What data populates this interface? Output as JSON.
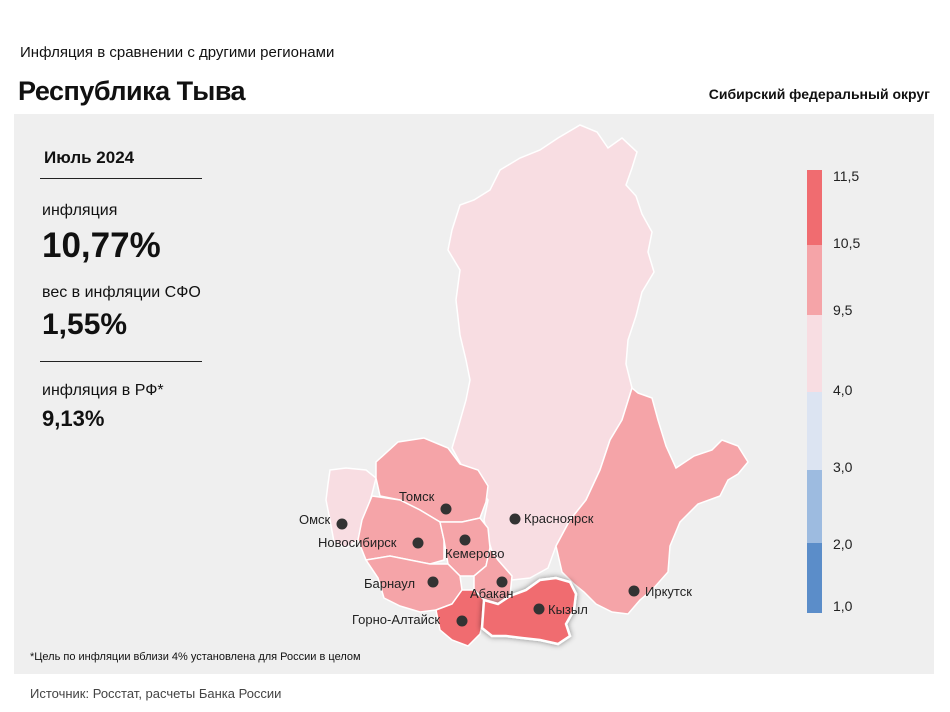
{
  "header": {
    "supertitle": "Инфляция в сравнении с другими регионами",
    "title": "Республика Тыва",
    "district": "Сибирский федеральный округ"
  },
  "info": {
    "month": "Июль 2024",
    "inflation_label": "инфляция",
    "inflation_value": "10,77%",
    "weight_label": "вес в инфляции СФО",
    "weight_value": "1,55%",
    "rf_label": "инфляция в РФ*",
    "rf_value": "9,13%"
  },
  "legend": {
    "ticks": [
      "1,0",
      "2,0",
      "3,0",
      "4,0",
      "9,5",
      "10,5",
      "11,5"
    ],
    "colors": [
      "#5b8dc9",
      "#9dbbe0",
      "#dce4f2",
      "#f8dde2",
      "#f5a4a8",
      "#f06c70"
    ]
  },
  "cities": {
    "omsk": "Омск",
    "tomsk": "Томск",
    "novosibirsk": "Новосибирск",
    "kemerovo": "Кемерово",
    "krasnoyarsk": "Красноярск",
    "barnaul": "Барнаул",
    "abakan": "Абакан",
    "kyzyl": "Кызыл",
    "gorno_altaisk": "Горно-Алтайск",
    "irkutsk": "Иркутск"
  },
  "footnote": "*Цель по инфляции вблизи 4% установлена для России в целом",
  "source": "Источник: Росстат, расчеты Банка России"
}
